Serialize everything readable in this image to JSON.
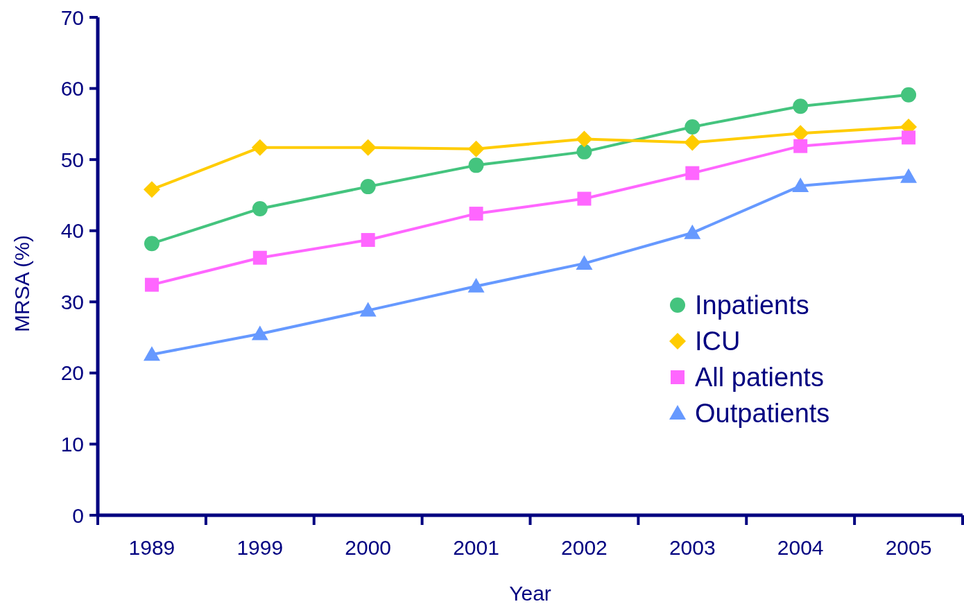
{
  "chart_data": {
    "type": "line",
    "xlabel": "Year",
    "ylabel": "MRSA (%)",
    "categories": [
      "1989",
      "1999",
      "2000",
      "2001",
      "2002",
      "2003",
      "2004",
      "2005"
    ],
    "ylim": [
      0,
      70
    ],
    "yticks": [
      0,
      10,
      20,
      30,
      40,
      50,
      60,
      70
    ],
    "grid": false,
    "legend": "right",
    "series": [
      {
        "name": "Inpatients",
        "color": "#44c47e",
        "marker": "circle",
        "values": [
          38.2,
          43.1,
          46.2,
          49.2,
          51.1,
          54.6,
          57.5,
          59.1
        ]
      },
      {
        "name": "ICU",
        "color": "#ffcc00",
        "marker": "diamond",
        "values": [
          45.8,
          51.7,
          51.7,
          51.5,
          52.9,
          52.4,
          53.7,
          54.6
        ]
      },
      {
        "name": "All patients",
        "color": "#ff66ff",
        "marker": "square",
        "values": [
          32.4,
          36.2,
          38.7,
          42.4,
          44.5,
          48.1,
          51.9,
          53.1
        ]
      },
      {
        "name": "Outpatients",
        "color": "#6699ff",
        "marker": "triangle",
        "values": [
          22.6,
          25.5,
          28.8,
          32.2,
          35.4,
          39.7,
          46.3,
          47.6
        ]
      }
    ]
  }
}
